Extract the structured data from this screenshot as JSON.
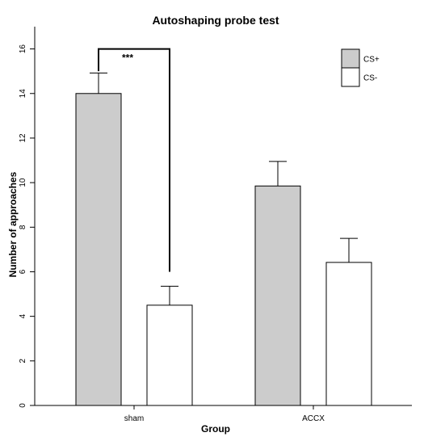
{
  "chart_data": {
    "type": "bar",
    "title": "Autoshaping probe test",
    "xlabel": "Group",
    "ylabel": "Number of approaches",
    "categories": [
      "sham",
      "ACCX"
    ],
    "series": [
      {
        "name": "CS+",
        "values": [
          14.0,
          9.85
        ],
        "errors": [
          0.92,
          1.1
        ],
        "color": "#cccccc"
      },
      {
        "name": "CS-",
        "values": [
          4.5,
          6.42
        ],
        "errors": [
          0.85,
          1.08
        ],
        "color": "#ffffff"
      }
    ],
    "ylim": [
      0,
      17
    ],
    "yticks": [
      0,
      2,
      4,
      6,
      8,
      10,
      12,
      14,
      16
    ],
    "grid": false,
    "legend_position": "top-right",
    "annotations": [
      {
        "text": "***",
        "between": [
          "sham:CS+",
          "sham:CS-"
        ],
        "y_top": 16.0,
        "left_end": 15.0,
        "right_end": 6.0
      }
    ]
  }
}
